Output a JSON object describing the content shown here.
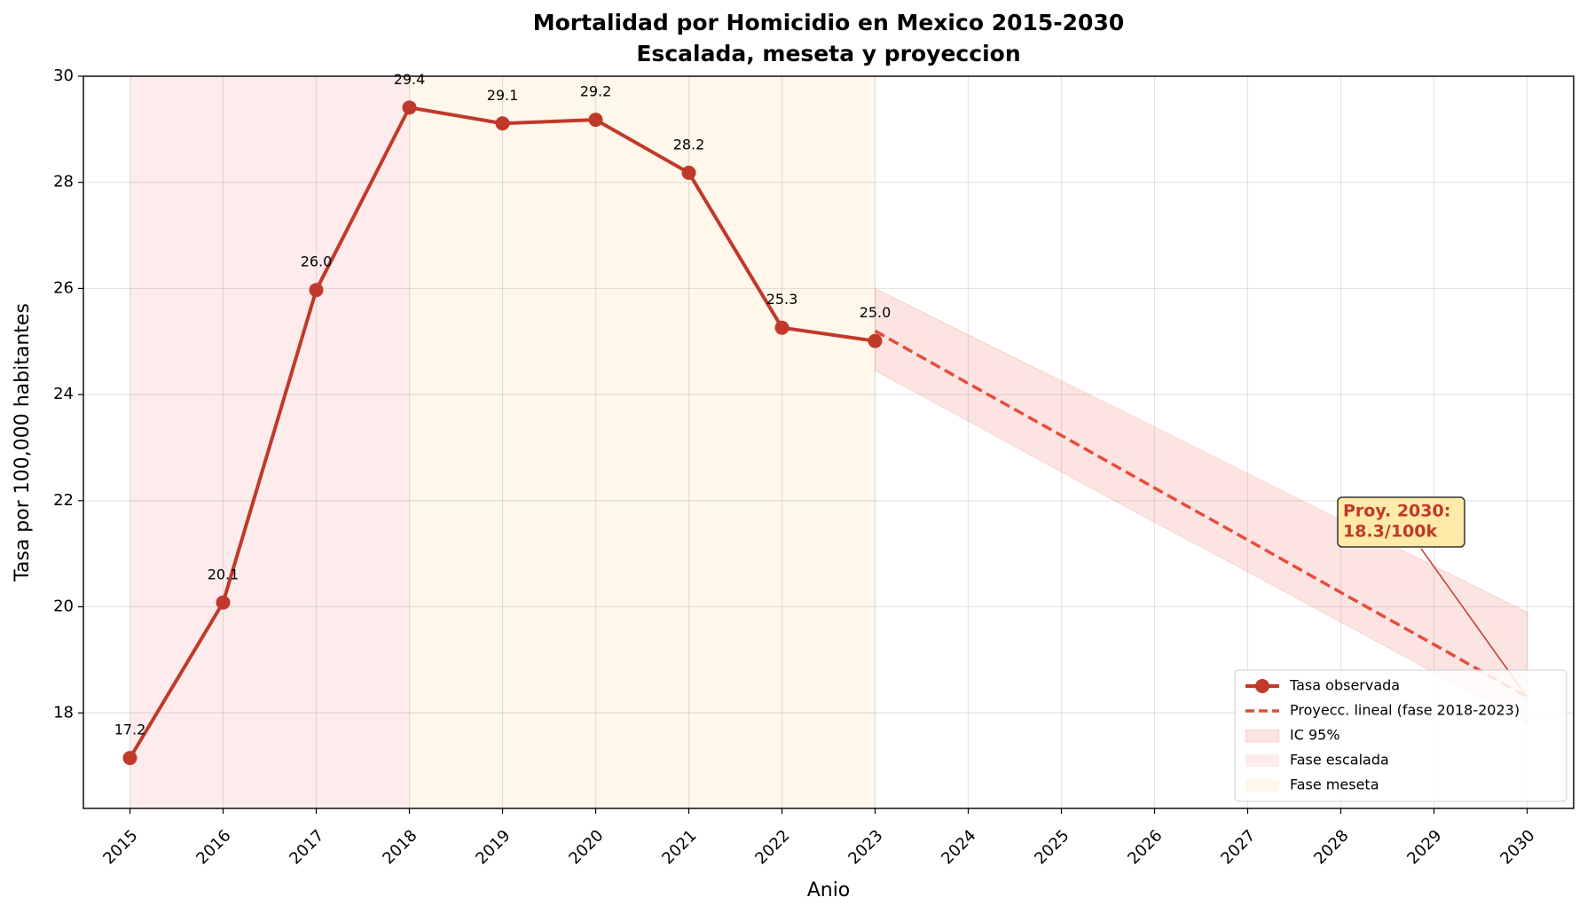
{
  "chart_data": {
    "type": "line",
    "title": "Mortalidad por Homicidio en Mexico 2015-2030",
    "subtitle": "Escalada, meseta y proyeccion",
    "x_label": "Anio",
    "y_label": "Tasa por 100,000 habitantes",
    "x": [
      2015,
      2016,
      2017,
      2018,
      2019,
      2020,
      2021,
      2022,
      2023,
      2024,
      2025,
      2026,
      2027,
      2028,
      2029,
      2030
    ],
    "xlim": [
      2014.5,
      2030.5
    ],
    "xticks": [
      2015,
      2016,
      2017,
      2018,
      2019,
      2020,
      2021,
      2022,
      2023,
      2024,
      2025,
      2026,
      2027,
      2028,
      2029,
      2030
    ],
    "ylim": [
      16.2,
      30
    ],
    "yticks": [
      18,
      20,
      22,
      24,
      26,
      28,
      30
    ],
    "grid": true,
    "legend": "lower right",
    "series": [
      {
        "name": "Tasa observada",
        "color": "#c0392b",
        "style": "solid",
        "values": [
          17.15,
          20.08,
          25.97,
          29.41,
          29.11,
          29.18,
          28.18,
          25.26,
          25.01,
          null,
          null,
          null,
          null,
          null,
          null,
          null
        ],
        "value_labels": [
          "17.2",
          "20.1",
          "26.0",
          "29.4",
          "29.1",
          "29.2",
          "28.2",
          "25.3",
          "25.0",
          null,
          null,
          null,
          null,
          null,
          null,
          null
        ]
      },
      {
        "name": "Proyecc. lineal (fase 2018-2023)",
        "color": "#e74c3c",
        "style": "dashed",
        "values": [
          null,
          null,
          null,
          null,
          null,
          null,
          null,
          null,
          25.2,
          24.21,
          23.23,
          22.24,
          21.26,
          20.27,
          19.29,
          18.3
        ]
      },
      {
        "name": "IC 95%",
        "color": "#e74c3c",
        "style": "band",
        "upper": [
          null,
          null,
          null,
          null,
          null,
          null,
          null,
          null,
          26.0,
          25.13,
          24.26,
          23.39,
          22.51,
          21.64,
          20.77,
          19.9
        ],
        "lower": [
          null,
          null,
          null,
          null,
          null,
          null,
          null,
          null,
          24.45,
          23.5,
          22.54,
          21.59,
          20.66,
          19.71,
          18.76,
          17.8
        ]
      }
    ],
    "spans": [
      {
        "name": "Fase escalada",
        "color": "#fde4e4",
        "start": 2015,
        "end": 2018
      },
      {
        "name": "Fase meseta",
        "color": "#fdf3e1",
        "start": 2018,
        "end": 2023
      }
    ],
    "annotation": {
      "lines": [
        "Proy. 2030:",
        "18.3/100k"
      ],
      "x": 2030,
      "y": 18.3,
      "color": "#c0392b",
      "box_color": "#ffeaa7"
    }
  }
}
